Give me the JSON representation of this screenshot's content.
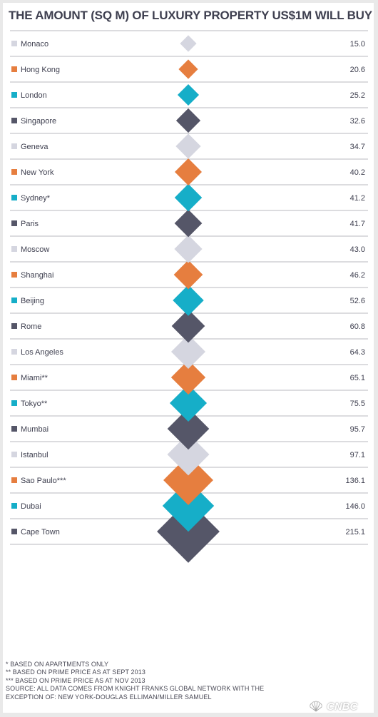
{
  "title": "THE AMOUNT (SQ M) OF LUXURY PROPERTY US$1M WILL BUY",
  "colors": {
    "light": "#d5d6e0",
    "orange": "#e67e3f",
    "teal": "#16aec8",
    "dark": "#555668",
    "rule": "#b9b9bf",
    "text": "#3f4050"
  },
  "chart_data": {
    "type": "diamond",
    "title": "THE AMOUNT (SQ M) OF LUXURY PROPERTY US$1M WILL BUY",
    "categories": [
      "Monaco",
      "Hong Kong",
      "London",
      "Singapore",
      "Geneva",
      "New York",
      "Sydney*",
      "Paris",
      "Moscow",
      "Shanghai",
      "Beijing",
      "Rome",
      "Los Angeles",
      "Miami**",
      "Tokyo**",
      "Mumbai",
      "Istanbul",
      "Sao Paulo***",
      "Dubai",
      "Cape Town"
    ],
    "value_labels": [
      "15.0",
      "20.6",
      "25.2",
      "32.6",
      "34.7",
      "40.2",
      "41.2",
      "41.7",
      "43.0",
      "46.2",
      "52.6",
      "60.8",
      "64.3",
      "65.1",
      "75.5",
      "95.7",
      "97.1",
      "136.1",
      "146.0",
      "215.1"
    ],
    "values": [
      15.0,
      20.6,
      25.2,
      32.6,
      34.7,
      40.2,
      41.2,
      41.7,
      43.0,
      46.2,
      52.6,
      60.8,
      64.3,
      65.1,
      75.5,
      95.7,
      97.1,
      136.1,
      146.0,
      215.1
    ],
    "colors": [
      "light",
      "orange",
      "teal",
      "dark",
      "light",
      "orange",
      "teal",
      "dark",
      "light",
      "orange",
      "teal",
      "dark",
      "light",
      "orange",
      "teal",
      "dark",
      "light",
      "orange",
      "teal",
      "dark"
    ]
  },
  "footnotes": [
    "* BASED ON APARTMENTS ONLY",
    "** BASED ON PRIME PRICE AS AT SEPT 2013",
    "*** BASED ON PRIME PRICE AS AT NOV 2013",
    "SOURCE: ALL DATA COMES FROM KNIGHT FRANKS GLOBAL NETWORK WITH THE",
    "EXCEPTION OF: NEW YORK-DOUGLAS ELLIMAN/MILLER SAMUEL"
  ],
  "logo": {
    "text": "CNBC",
    "icon": "peacock-icon"
  }
}
